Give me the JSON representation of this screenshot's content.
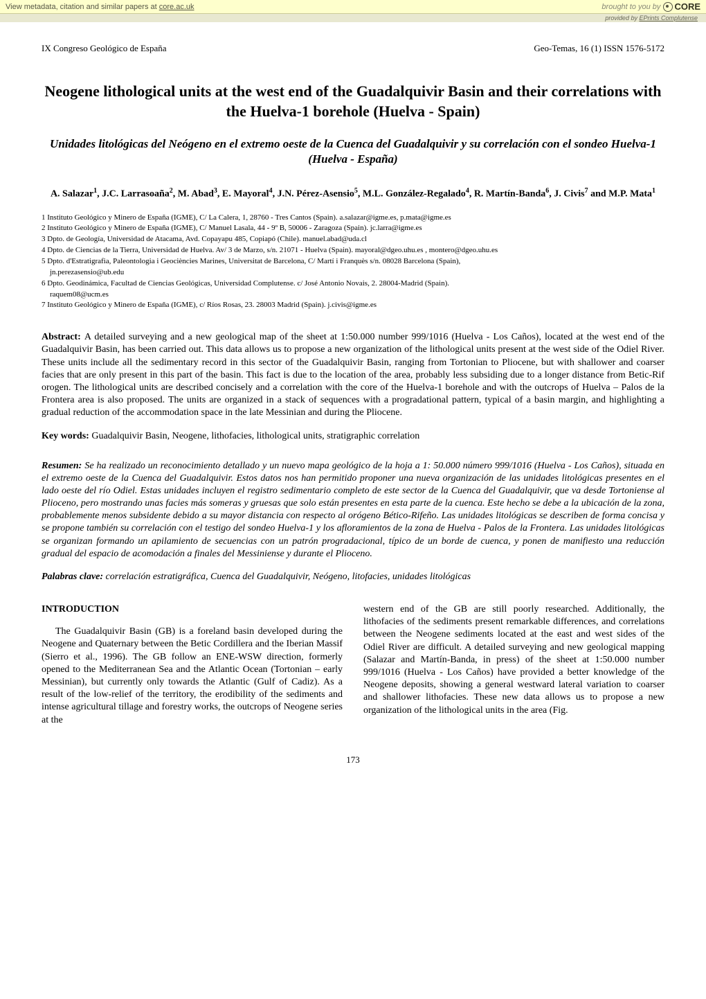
{
  "banner": {
    "left_text_prefix": "View metadata, citation and similar papers at ",
    "left_text_link": "core.ac.uk",
    "brought_to_you": "brought to you by",
    "logo_text": "CORE",
    "provided_prefix": "provided by ",
    "provided_link": "EPrints Complutense"
  },
  "header": {
    "left": "IX Congreso Geológico de España",
    "right": "Geo-Temas, 16 (1) ISSN 1576-5172"
  },
  "title": "Neogene lithological units at the west end of the Guadalquivir Basin and their correlations with the Huelva-1 borehole (Huelva - Spain)",
  "subtitle": "Unidades litológicas del Neógeno en el extremo oeste de la Cuenca del Guadalquivir y su correlación con el sondeo Huelva-1 (Huelva - España)",
  "authors_html": "A. Salazar<sup>1</sup>, J.C. Larrasoaña<sup>2</sup>, M. Abad<sup>3</sup>, E. Mayoral<sup>4</sup>, J.N. Pérez-Asensio<sup>5</sup>, M.L. González-Regalado<sup>4</sup>, R. Martín-Banda<sup>6</sup>, J. Civis<sup>7</sup> and M.P. Mata<sup>1</sup>",
  "affiliations": [
    "1 Instituto Geológico y Minero de España (IGME), C/ La Calera, 1, 28760 - Tres Cantos (Spain). a.salazar@igme.es, p.mata@igme.es",
    "2 Instituto Geológico y Minero de España (IGME), C/ Manuel Lasala, 44 - 9º B, 50006 - Zaragoza (Spain). jc.larra@igme.es",
    "3 Dpto. de Geología, Universidad de Atacama, Avd. Copayapu 485, Copiapó (Chile). manuel.abad@uda.cl",
    "4 Dpto. de Ciencias de la Tierra, Universidad de Huelva. Av/ 3 de Marzo, s/n. 21071 - Huelva (Spain). mayoral@dgeo.uhu.es , montero@dgeo.uhu.es",
    "5 Dpto. d'Estratigrafia, Paleontologia i Geociències Marines, Universitat de Barcelona, C/ Martí i Franquès s/n. 08028 Barcelona (Spain),",
    "   jn.perezasensio@ub.edu",
    "6 Dpto. Geodinámica, Facultad de Ciencias Geológicas, Universidad Complutense. c/ José Antonio Novais, 2. 28004-Madrid (Spain).",
    "   raquem08@ucm.es",
    "7 Instituto Geológico y Minero de España (IGME), c/ Ríos Rosas, 23. 28003 Madrid (Spain). j.civis@igme.es"
  ],
  "abstract_label": "Abstract: ",
  "abstract_text": "A detailed surveying and a new geological map of the sheet at 1:50.000 number 999/1016 (Huelva - Los Caños), located at the west end of the Guadalquivir Basin, has been carried out. This data allows us to propose a new organization of the lithological units present at the west side of the Odiel River. These units include all the sedimentary record in this sector of the Guadalquivir Basin, ranging from Tortonian to Pliocene, but with shallower and coarser facies that are only present in this part of the basin. This fact is due to the location of the area, probably less subsiding due to a longer distance from Betic-Rif orogen. The lithological units are described concisely and a correlation with the core of the Huelva-1 borehole and with the outcrops of Huelva – Palos de la Frontera area is also proposed. The units are organized in a stack of sequences with a progradational pattern, typical of a basin margin, and highlighting a gradual reduction of the accommodation space in the late Messinian and during the Pliocene.",
  "keywords_label": "Key words: ",
  "keywords_text": "Guadalquivir Basin, Neogene, lithofacies, lithological units, stratigraphic correlation",
  "resumen_label": "Resumen: ",
  "resumen_text": "Se ha realizado un reconocimiento detallado y un nuevo mapa geológico de la hoja a 1: 50.000 número 999/1016 (Huelva - Los Caños), situada en el extremo oeste de la Cuenca del Guadalquivir. Estos datos nos han permitido proponer una nueva organización de las unidades litológicas presentes en el lado oeste del río Odiel. Estas unidades incluyen el registro sedimentario completo de este sector de la Cuenca del Guadalquivir, que va desde Tortoniense al Plioceno, pero mostrando unas facies más someras y gruesas que solo están presentes en esta parte de la cuenca. Este hecho se debe a la ubicación de la zona, probablemente menos subsidente debido a su mayor distancia con respecto al orógeno Bético-Rifeño. Las unidades litológicas se describen de forma concisa y se propone también su correlación con el testigo del sondeo Huelva-1 y los afloramientos de la zona de Huelva - Palos de la Frontera. Las unidades litológicas se organizan formando un apilamiento de secuencias con un patrón progradacional, típico de un borde de cuenca, y ponen de manifiesto una reducción gradual del espacio de acomodación a finales del Messiniense y durante el Plioceno.",
  "palabras_label": "Palabras clave: ",
  "palabras_text": "correlación estratigráfica, Cuenca del Guadalquivir, Neógeno, litofacies, unidades litológicas",
  "section_heading": "INTRODUCTION",
  "body_left": "The Guadalquivir Basin (GB) is a foreland basin developed during the Neogene and Quaternary between the Betic Cordillera and the Iberian Massif (Sierro et al., 1996). The GB follow an ENE-WSW direction, formerly opened to the Mediterranean Sea and the Atlantic Ocean (Tortonian – early Messinian), but currently only towards the Atlantic (Gulf of Cadiz). As a result of the low-relief of the territory, the erodibility of the sediments and intense agricultural tillage and forestry works, the outcrops of Neogene series at the",
  "body_right": "western end of the GB are still poorly researched. Additionally, the lithofacies of the sediments present remarkable differences, and correlations between the Neogene sediments located at the east and west sides of the Odiel River are difficult. A detailed surveying and new geological mapping (Salazar and Martín-Banda, in press) of the sheet at 1:50.000 number 999/1016 (Huelva - Los Caños) have provided a better knowledge of the Neogene deposits, showing a general westward lateral variation to coarser and shallower lithofacies. These new data allows us to propose a new organization of the lithological units in the area (Fig.",
  "page_number": "173"
}
